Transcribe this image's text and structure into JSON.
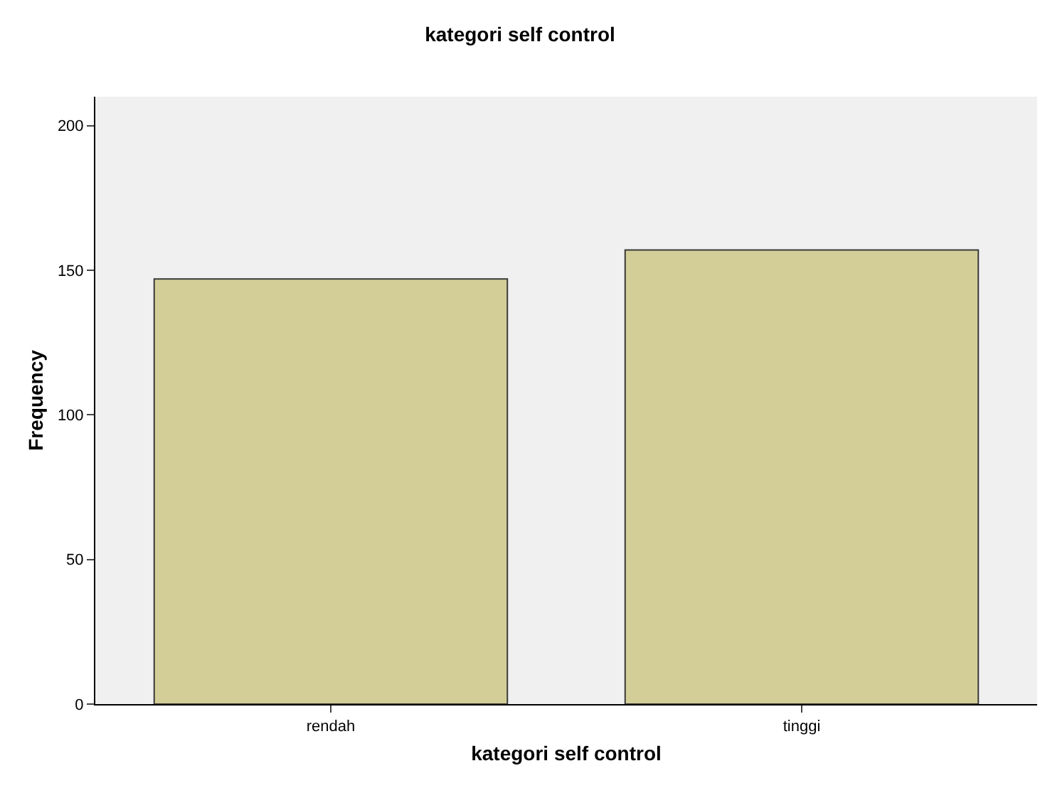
{
  "chart_data": {
    "type": "bar",
    "title": "kategori self control",
    "xlabel": "kategori self control",
    "ylabel": "Frequency",
    "categories": [
      "rendah",
      "tinggi"
    ],
    "values": [
      147,
      157
    ],
    "color": "#d3ce97",
    "ylim": [
      0,
      210
    ],
    "yticks": [
      0,
      50,
      100,
      150,
      200
    ],
    "grid": false,
    "legend": false
  }
}
